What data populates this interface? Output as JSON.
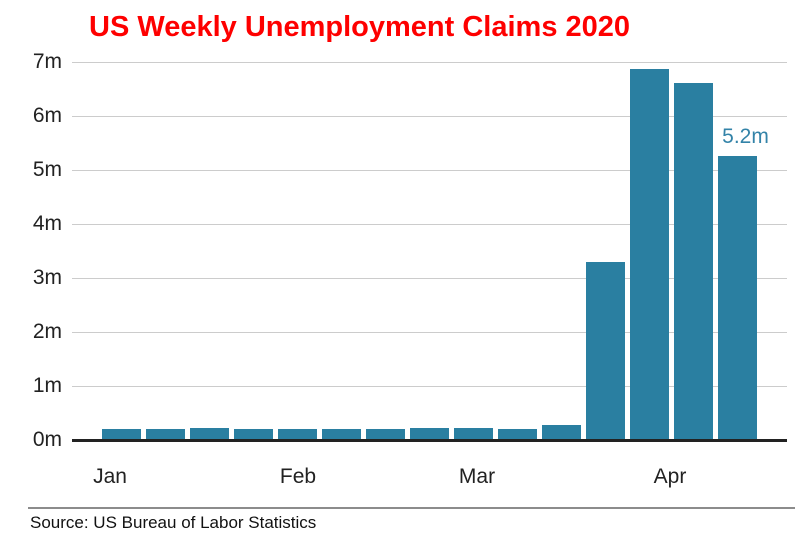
{
  "header": {
    "title": "US Weekly Unemployment Claims 2020"
  },
  "footer": {
    "source": "Source: US Bureau of Labor Statistics"
  },
  "colors": {
    "title": "#fe0000",
    "bar": "#2a7fa1",
    "annotation": "#3383a8",
    "grid": "#cccccc",
    "axis": "#222222",
    "tick_text": "#222222",
    "source_text": "#111111",
    "divider": "#8c8c8c",
    "background": "#ffffff"
  },
  "chart_data": {
    "type": "bar",
    "title": "US Weekly Unemployment Claims 2020",
    "xlabel": "",
    "ylabel": "",
    "unit": "millions of weekly claims",
    "values": [
      0.21,
      0.2,
      0.22,
      0.21,
      0.2,
      0.2,
      0.21,
      0.22,
      0.22,
      0.21,
      0.28,
      3.3,
      6.87,
      6.62,
      5.25
    ],
    "xticklabels": [
      "Jan",
      "Feb",
      "Mar",
      "Apr"
    ],
    "yticklabels": [
      "0m",
      "1m",
      "2m",
      "3m",
      "4m",
      "5m",
      "6m",
      "7m"
    ],
    "ylim": [
      0,
      7
    ],
    "grid": "horizontal",
    "legend": "none",
    "annotation": {
      "text": "5.2m",
      "bar_index": 14
    }
  }
}
